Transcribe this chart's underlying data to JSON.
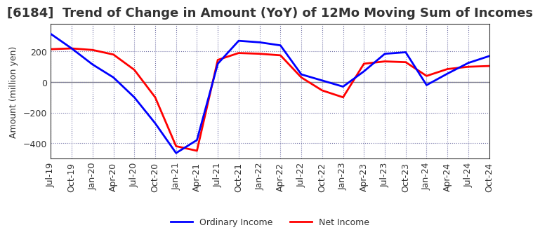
{
  "title": "[6184]  Trend of Change in Amount (YoY) of 12Mo Moving Sum of Incomes",
  "ylabel": "Amount (million yen)",
  "background_color": "#ffffff",
  "grid_color": "#7777aa",
  "ordinary_income_color": "#0000ff",
  "net_income_color": "#ff0000",
  "x_labels": [
    "Jul-19",
    "Oct-19",
    "Jan-20",
    "Apr-20",
    "Jul-20",
    "Oct-20",
    "Jan-21",
    "Apr-21",
    "Jul-21",
    "Oct-21",
    "Jan-22",
    "Apr-22",
    "Jul-22",
    "Oct-22",
    "Jan-23",
    "Apr-23",
    "Jul-23",
    "Oct-23",
    "Jan-24",
    "Apr-24",
    "Jul-24",
    "Oct-24"
  ],
  "ordinary_income": [
    315,
    220,
    115,
    30,
    -100,
    -270,
    -465,
    -380,
    120,
    270,
    260,
    240,
    50,
    10,
    -30,
    70,
    185,
    195,
    -20,
    55,
    125,
    170
  ],
  "net_income": [
    215,
    220,
    210,
    180,
    80,
    -100,
    -420,
    -450,
    145,
    190,
    185,
    175,
    30,
    -55,
    -100,
    120,
    135,
    130,
    40,
    85,
    100,
    105
  ],
  "ylim_min": -500,
  "ylim_max": 380,
  "yticks": [
    200,
    0,
    -200,
    -400
  ],
  "spine_color": "#333333",
  "tick_color": "#333333",
  "title_fontsize": 13,
  "label_fontsize": 9,
  "tick_fontsize": 9,
  "legend_fontsize": 9,
  "linewidth": 2.0
}
